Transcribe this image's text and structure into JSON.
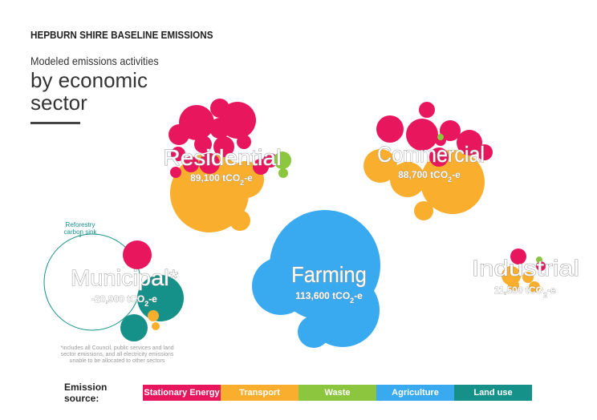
{
  "header": {
    "heading": "HEPBURN SHIRE BASELINE EMISSIONS",
    "subtitle": "Modeled emissions activities",
    "title": "by economic sector"
  },
  "note": "*includes all Council, public services and land sector emissions, and all electricity emissions unable to be allocated to other sectors",
  "sink_label": "Reforestry carbon sink",
  "legend": {
    "title": "Emission source:",
    "items": [
      {
        "label": "Stationary Energy",
        "color": "#e8175d"
      },
      {
        "label": "Transport",
        "color": "#f9ae2e"
      },
      {
        "label": "Waste",
        "color": "#8cc63f"
      },
      {
        "label": "Agriculture",
        "color": "#3aaaf0"
      },
      {
        "label": "Land use",
        "color": "#16918a"
      }
    ]
  },
  "chart_data": {
    "type": "bubble",
    "unit": "tCO2-e",
    "sectors": [
      {
        "name": "Residential",
        "value_label": "89,100 tCO2-e",
        "value": 89100
      },
      {
        "name": "Commercial",
        "value_label": "88,700 tCO2-e",
        "value": 88700
      },
      {
        "name": "Municipal*",
        "value_label": "-20,900 tCO2-e",
        "value": -20900
      },
      {
        "name": "Farming",
        "value_label": "113,600 tCO2-e",
        "value": 113600
      },
      {
        "name": "Industrial",
        "value_label": "11,500 tCO2-e",
        "value": 11500
      }
    ]
  }
}
